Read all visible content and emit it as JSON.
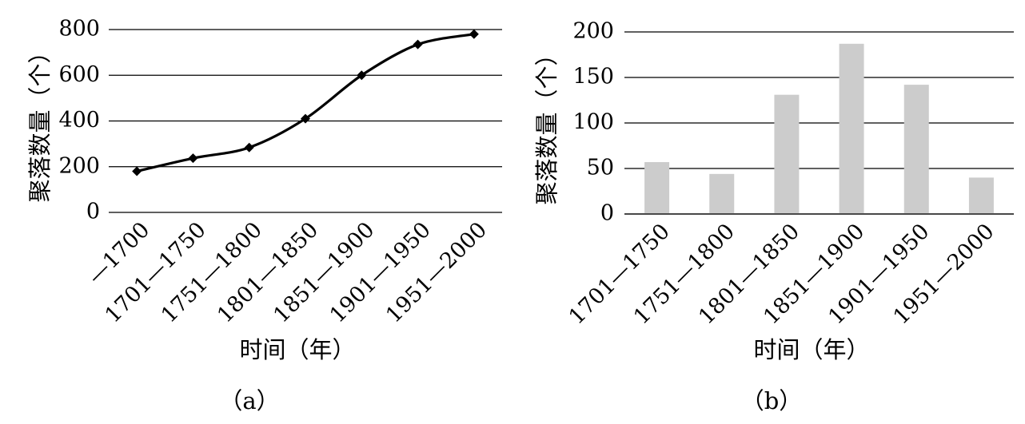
{
  "chart_data": [
    {
      "type": "line",
      "caption": "（a）",
      "xlabel": "时间（年）",
      "ylabel": "聚落数量（个）",
      "categories": [
        "—1700",
        "1701—1750",
        "1751—1800",
        "1801—1850",
        "1851—1900",
        "1901—1950",
        "1951—2000"
      ],
      "series": [
        {
          "values": [
            180,
            237,
            284,
            410,
            600,
            735,
            780
          ]
        }
      ],
      "ylim": [
        0,
        800
      ],
      "yticks": [
        "0",
        "200",
        "400",
        "600",
        "800"
      ],
      "grid": true,
      "marker": "diamond",
      "colors": {
        "line": "#000000"
      }
    },
    {
      "type": "bar",
      "caption": "（b）",
      "xlabel": "时间（年）",
      "ylabel": "聚落数量（个）",
      "categories": [
        "1701—1750",
        "1751—1800",
        "1801—1850",
        "1851—1900",
        "1901—1950",
        "1951—2000"
      ],
      "series": [
        {
          "values": [
            57,
            44,
            131,
            187,
            142,
            40
          ]
        }
      ],
      "ylim": [
        0,
        200
      ],
      "yticks": [
        "0",
        "50",
        "100",
        "150",
        "200"
      ],
      "grid": true,
      "colors": {
        "bar": "#cccccc"
      }
    }
  ]
}
